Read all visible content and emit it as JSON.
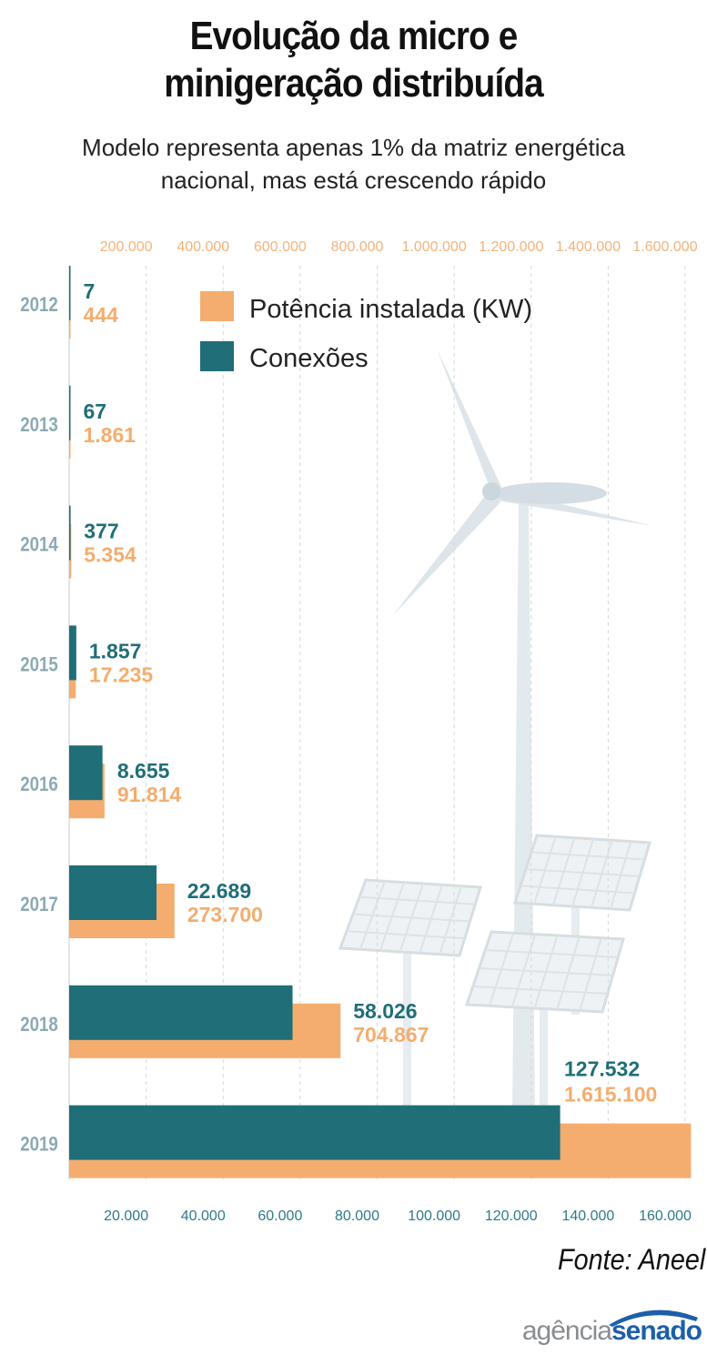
{
  "title_lines": [
    "Evolução da micro e",
    "minigeração distribuída"
  ],
  "subtitle_lines": [
    "Modelo representa apenas 1% da matriz energética",
    "nacional, mas está crescendo rápido"
  ],
  "source": "Fonte: Aneel",
  "logo": {
    "part1": "agência",
    "part2": "senado"
  },
  "colors": {
    "potencia": "#F4AD6E",
    "conexoes": "#1F6E78",
    "year": "#8BAAB4",
    "bottom_axis": "#2E7A86",
    "top_axis": "#F4B27A",
    "grid": "#D8D8D8"
  },
  "chart_data": {
    "type": "bar",
    "orientation": "horizontal",
    "categories": [
      "2012",
      "2013",
      "2014",
      "2015",
      "2016",
      "2017",
      "2018",
      "2019"
    ],
    "series": [
      {
        "name": "Potência instalada (KW)",
        "values": [
          444,
          1861,
          5354,
          17235,
          91814,
          273700,
          704867,
          1615100
        ],
        "labels": [
          "444",
          "1.861",
          "5.354",
          "17.235",
          "91.814",
          "273.700",
          "704.867",
          "1.615.100"
        ],
        "axis": "top",
        "xlim": [
          0,
          1600000
        ]
      },
      {
        "name": "Conexões",
        "values": [
          7,
          67,
          377,
          1857,
          8655,
          22689,
          58026,
          127532
        ],
        "labels": [
          "7",
          "67",
          "377",
          "1.857",
          "8.655",
          "22.689",
          "58.026",
          "127.532"
        ],
        "axis": "bottom",
        "xlim": [
          0,
          160000
        ]
      }
    ],
    "top_ticks": [
      "200.000",
      "400.000",
      "600.000",
      "800.000",
      "1.000.000",
      "1.200.000",
      "1.400.000",
      "1.600.000"
    ],
    "bottom_ticks": [
      "20.000",
      "40.000",
      "60.000",
      "80.000",
      "100.000",
      "120.000",
      "140.000",
      "160.000"
    ],
    "grid": true,
    "legend_position": "top"
  }
}
